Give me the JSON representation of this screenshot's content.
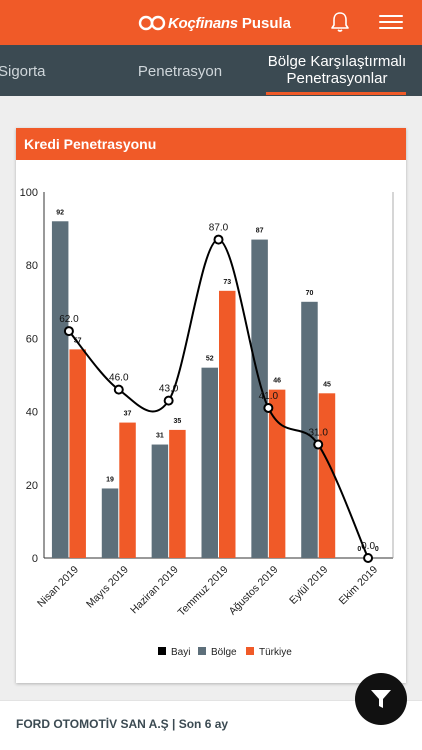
{
  "header": {
    "logo_brand": "Koçfinans",
    "logo_product": "Pusula",
    "bell_icon": "bell-icon",
    "menu_icon": "hamburger-menu-icon"
  },
  "tabs": [
    {
      "label": "Sigorta"
    },
    {
      "label": "Penetrasyon"
    },
    {
      "label_line1": "Bölge Karşılaştırmalı",
      "label_line2": "Penetrasyonlar",
      "active": true
    }
  ],
  "card": {
    "title": "Kredi Penetrasyonu"
  },
  "chart_data": {
    "type": "bar",
    "title": "Kredi Penetrasyonu",
    "categories": [
      "Nisan 2019",
      "Mayıs 2019",
      "Haziran 2019",
      "Temmuz 2019",
      "Ağustos 2019",
      "Eylül 2019",
      "Ekim 2019"
    ],
    "ylim": [
      0,
      100
    ],
    "yticks": [
      0,
      20,
      40,
      60,
      80,
      100
    ],
    "grid": false,
    "legend_position": "bottom",
    "series": [
      {
        "name": "Bayi",
        "kind": "line",
        "color": "#000000",
        "values": [
          62.0,
          46.0,
          43.0,
          87.0,
          41.0,
          31.0,
          0.0
        ],
        "labels": [
          "62.0",
          "46.0",
          "43.0",
          "87.0",
          "41.0",
          "31.0",
          "0.0"
        ]
      },
      {
        "name": "Bölge",
        "kind": "bar",
        "color": "#5d6f7a",
        "values": [
          92,
          19,
          31,
          52,
          87,
          70,
          0
        ],
        "labels": [
          "92",
          "19",
          "31",
          "52",
          "87",
          "70",
          "0"
        ]
      },
      {
        "name": "Türkiye",
        "kind": "bar",
        "color": "#f05a28",
        "values": [
          57,
          37,
          35,
          73,
          46,
          45,
          0
        ],
        "labels": [
          "57",
          "37",
          "35",
          "73",
          "46",
          "45",
          "0"
        ]
      }
    ]
  },
  "footer": {
    "company": "FORD OTOMOTİV SAN A.Ş | Son 6 ay",
    "filter_icon": "filter-icon"
  }
}
